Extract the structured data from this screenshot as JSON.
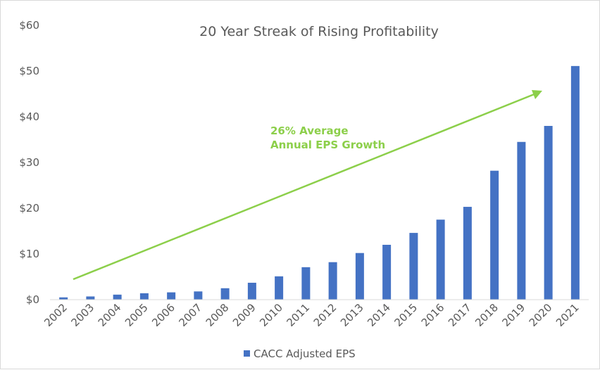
{
  "chart_data": {
    "type": "bar",
    "title": "20 Year Streak of Rising Profitability",
    "xlabel": "",
    "ylabel": "",
    "categories": [
      "2002",
      "2003",
      "2004",
      "2005",
      "2006",
      "2007",
      "2008",
      "2009",
      "2010",
      "2011",
      "2012",
      "2013",
      "2014",
      "2015",
      "2016",
      "2017",
      "2018",
      "2019",
      "2020",
      "2021"
    ],
    "series": [
      {
        "name": "CACC Adjusted EPS",
        "color": "#4472c4",
        "values": [
          0.5,
          0.7,
          1.1,
          1.4,
          1.6,
          1.8,
          2.5,
          3.7,
          5.1,
          7.1,
          8.2,
          10.2,
          12.0,
          14.6,
          17.5,
          20.3,
          28.2,
          34.5,
          38.0,
          51.1
        ]
      }
    ],
    "ylim": [
      0,
      60
    ],
    "yticks": [
      0,
      10,
      20,
      30,
      40,
      50,
      60
    ],
    "ytick_labels": [
      "$0",
      "$10",
      "$20",
      "$30",
      "$40",
      "$50",
      "$60"
    ],
    "gridlines": false,
    "legend_position": "bottom",
    "annotation": {
      "lines": [
        "26% Average",
        "Annual EPS Growth"
      ],
      "color": "#8ccf4a"
    },
    "trend_arrow_color": "#8ccf4a"
  }
}
